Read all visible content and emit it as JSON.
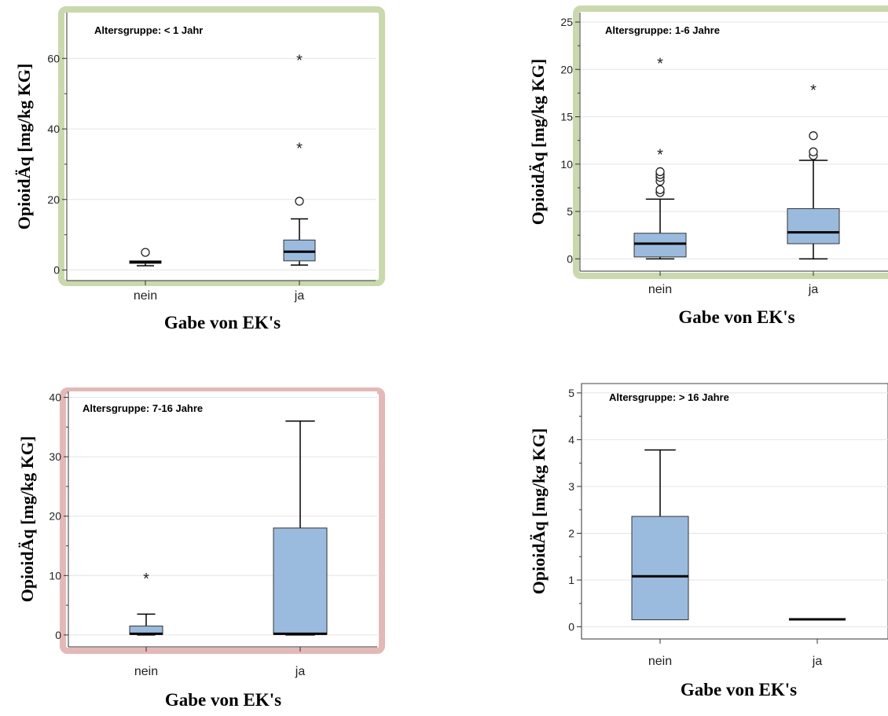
{
  "chart_data": [
    {
      "type": "box",
      "title": "Altersgruppe: < 1 Jahr",
      "xlabel": "Gabe von EK's",
      "ylabel": "OpioidÄq [mg/kg KG]",
      "categories": [
        "nein",
        "ja"
      ],
      "ylim": [
        -3,
        73
      ],
      "yticks": [
        0,
        20,
        40,
        60
      ],
      "frame_color": "#c9d9ad",
      "boxes": [
        {
          "category": "nein",
          "q1": 1.9,
          "median": 2.2,
          "q3": 2.6,
          "whisker_low": 1.2,
          "whisker_high": 2.6,
          "outliers": [
            5
          ],
          "extremes": []
        },
        {
          "category": "ja",
          "q1": 2.6,
          "median": 5.2,
          "q3": 8.5,
          "whisker_low": 1.4,
          "whisker_high": 14.5,
          "outliers": [
            19.5
          ],
          "extremes": [
            35,
            60
          ]
        }
      ]
    },
    {
      "type": "box",
      "title": "Altersgruppe: 1-6 Jahre",
      "xlabel": "Gabe von EK's",
      "ylabel": "OpioidÄq [mg/kg KG]",
      "categories": [
        "nein",
        "ja"
      ],
      "ylim": [
        -1.3,
        26
      ],
      "yticks": [
        0,
        5,
        10,
        15,
        20,
        25
      ],
      "frame_color": "#c9d9ad",
      "boxes": [
        {
          "category": "nein",
          "q1": 0.2,
          "median": 1.6,
          "q3": 2.7,
          "whisker_low": 0,
          "whisker_high": 6.3,
          "outliers": [
            7.0,
            7.3,
            8.2,
            8.6,
            8.9,
            9.2
          ],
          "extremes": [
            11.2,
            20.8
          ]
        },
        {
          "category": "ja",
          "q1": 1.6,
          "median": 2.8,
          "q3": 5.3,
          "whisker_low": 0,
          "whisker_high": 10.4,
          "outliers": [
            10.9,
            11.3,
            13.0
          ],
          "extremes": [
            18.0
          ]
        }
      ]
    },
    {
      "type": "box",
      "title": "Altersgruppe: 7-16 Jahre",
      "xlabel": "Gabe von EK's",
      "ylabel": "OpioidÄq [mg/kg KG]",
      "categories": [
        "nein",
        "ja"
      ],
      "ylim": [
        -2,
        41
      ],
      "yticks": [
        0,
        10,
        20,
        30,
        40
      ],
      "frame_color": "#e3b9b7",
      "boxes": [
        {
          "category": "nein",
          "q1": 0.1,
          "median": 0.2,
          "q3": 1.5,
          "whisker_low": 0,
          "whisker_high": 3.5,
          "outliers": [],
          "extremes": [
            9.8
          ]
        },
        {
          "category": "ja",
          "q1": 0.1,
          "median": 0.2,
          "q3": 18.0,
          "whisker_low": 0,
          "whisker_high": 36.0,
          "outliers": [],
          "extremes": []
        }
      ]
    },
    {
      "type": "box",
      "title": "Altersgruppe: > 16 Jahre",
      "xlabel": "Gabe von EK's",
      "ylabel": "OpioidÄq [mg/kg KG]",
      "categories": [
        "nein",
        "ja"
      ],
      "ylim": [
        -0.26,
        5.2
      ],
      "yticks": [
        0,
        1,
        2,
        3,
        4,
        5
      ],
      "frame_color": "#ffffff",
      "boxes": [
        {
          "category": "nein",
          "q1": 0.15,
          "median": 1.08,
          "q3": 2.36,
          "whisker_low": 0.15,
          "whisker_high": 3.78,
          "outliers": [],
          "extremes": []
        },
        {
          "category": "ja",
          "q1": 0.16,
          "median": 0.16,
          "q3": 0.16,
          "whisker_low": 0.16,
          "whisker_high": 0.16,
          "outliers": [],
          "extremes": []
        }
      ]
    }
  ]
}
